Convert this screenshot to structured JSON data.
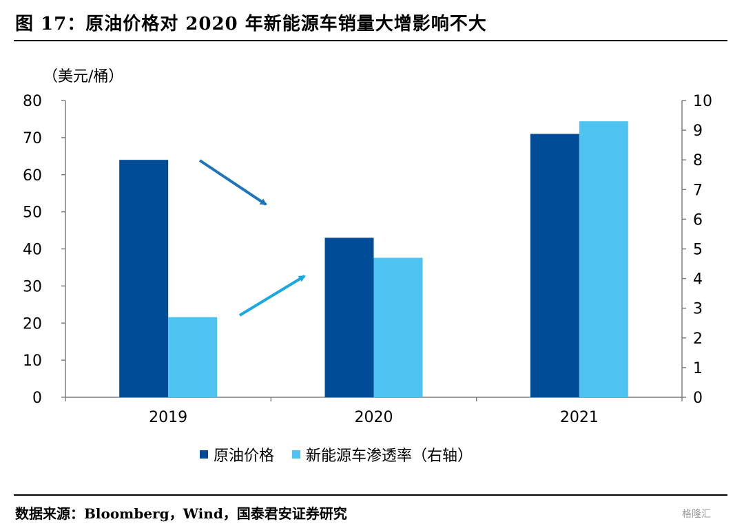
{
  "figure": {
    "title": "图 17：原油价格对 2020 年新能源车销量大增影响不大",
    "source": "数据来源：Bloomberg，Wind，国泰君安证券研究",
    "watermark": "格隆汇"
  },
  "colors": {
    "oil": "#004C97",
    "nev": "#4FC3F0",
    "arrow_down": "#1D75BC",
    "arrow_up": "#1AA8E0",
    "axis": "#7f7f7f"
  },
  "chart_data": {
    "type": "bar",
    "categories": [
      "2019",
      "2020",
      "2021"
    ],
    "series": [
      {
        "name": "原油价格",
        "axis": "left",
        "values": [
          64,
          43,
          71
        ]
      },
      {
        "name": "新能源车渗透率（右轴）",
        "axis": "right",
        "values": [
          2.7,
          4.7,
          9.3
        ]
      }
    ],
    "ylabel_left": "（美元/桶）",
    "ylim_left": [
      0,
      80
    ],
    "yticks_left": [
      "0",
      "10",
      "20",
      "30",
      "40",
      "50",
      "60",
      "70",
      "80"
    ],
    "ylim_right": [
      0,
      10
    ],
    "yticks_right": [
      "0",
      "1",
      "2",
      "3",
      "4",
      "5",
      "6",
      "7",
      "8",
      "9",
      "10"
    ],
    "legend_position": "bottom",
    "grid": false
  }
}
